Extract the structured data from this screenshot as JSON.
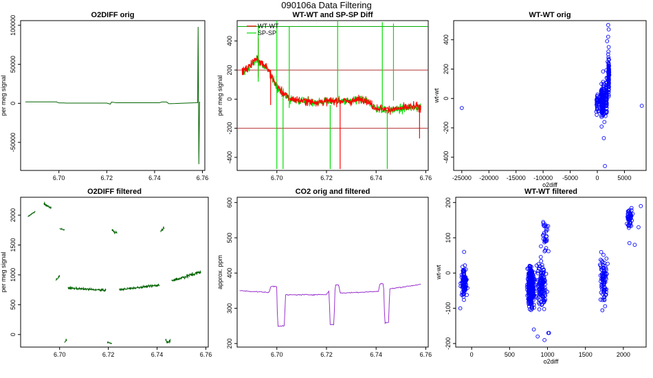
{
  "suptitle": "090106a   Data Filtering",
  "colors": {
    "o2diff": "#006400",
    "wtwt": "#ff0000",
    "spsp": "#00dd00",
    "co2": "#9932cc",
    "scatter": "#0000ff",
    "refline_red": "#b03030",
    "refline_green": "#00aa00"
  },
  "chart_data": [
    {
      "id": "p1",
      "type": "line",
      "title": "O2DIFF orig",
      "xlabel": "",
      "ylabel": "per meg signal",
      "xlim": [
        6.684,
        6.761
      ],
      "ylim": [
        -86000,
        106000
      ],
      "xticks": [
        6.7,
        6.72,
        6.74,
        6.76
      ],
      "xtick_labels": [
        "6.70",
        "6.72",
        "6.74",
        "6.76"
      ],
      "yticks": [
        -50000,
        0,
        50000,
        100000
      ],
      "ytick_labels": [
        "-50000",
        "0",
        "50000",
        "100000"
      ],
      "series": [
        {
          "name": "O2DIFF orig",
          "color_key": "o2diff",
          "x": [
            6.686,
            6.699,
            6.7,
            6.702,
            6.703,
            6.72,
            6.7215,
            6.722,
            6.724,
            6.742,
            6.743,
            6.745,
            6.746,
            6.757,
            6.758,
            6.7582,
            6.7585,
            6.7588,
            6.759
          ],
          "y": [
            1800,
            1800,
            500,
            500,
            300,
            300,
            -1000,
            1600,
            800,
            800,
            1700,
            1700,
            -500,
            800,
            1000,
            98000,
            -78000,
            1500,
            1500
          ]
        }
      ]
    },
    {
      "id": "p2",
      "type": "line",
      "title": "WT-WT and SP-SP Diff",
      "xlabel": "",
      "ylabel": "per meg signal",
      "xlim": [
        6.684,
        6.761
      ],
      "ylim": [
        -490,
        540
      ],
      "xticks": [
        6.7,
        6.72,
        6.74,
        6.76
      ],
      "xtick_labels": [
        "6.70",
        "6.72",
        "6.74",
        "6.76"
      ],
      "yticks": [
        -400,
        -200,
        0,
        200,
        400
      ],
      "ytick_labels": [
        "-400",
        "-200",
        "0",
        "200",
        "400"
      ],
      "hlines": [
        {
          "y": 200,
          "color_key": "refline_red"
        },
        {
          "y": -200,
          "color_key": "refline_red"
        },
        {
          "y": 500,
          "color_key": "refline_green"
        }
      ],
      "legend": {
        "position": "top-left",
        "entries": [
          {
            "label": "WT-WT",
            "color_key": "wtwt"
          },
          {
            "label": "SP-SP",
            "color_key": "spsp"
          }
        ]
      },
      "spikes_spsp": [
        {
          "x": 6.6925,
          "y0": 120,
          "y1": 510
        },
        {
          "x": 6.7,
          "y0": -480,
          "y1": 540
        },
        {
          "x": 6.7025,
          "y0": -480,
          "y1": 10
        },
        {
          "x": 6.705,
          "y0": -60,
          "y1": 500
        },
        {
          "x": 6.7215,
          "y0": -480,
          "y1": -40
        },
        {
          "x": 6.7245,
          "y0": -20,
          "y1": 540
        },
        {
          "x": 6.7425,
          "y0": -60,
          "y1": 530
        },
        {
          "x": 6.7445,
          "y0": -480,
          "y1": -80
        },
        {
          "x": 6.747,
          "y0": -10,
          "y1": 520
        }
      ],
      "series": [
        {
          "name": "WT-WT",
          "color_key": "wtwt",
          "x": [
            6.686,
            6.688,
            6.69,
            6.692,
            6.694,
            6.696,
            6.698,
            6.7,
            6.702,
            6.704,
            6.706,
            6.71,
            6.715,
            6.72,
            6.725,
            6.73,
            6.735,
            6.74,
            6.745,
            6.75,
            6.755,
            6.758
          ],
          "y": [
            190,
            210,
            250,
            280,
            250,
            220,
            150,
            90,
            50,
            20,
            0,
            -10,
            -20,
            -15,
            -10,
            -15,
            5,
            -60,
            -70,
            -65,
            -50,
            -55
          ],
          "noise": 40,
          "spikes": [
            {
              "x": 6.6925,
              "y0": 150,
              "y1": 420
            },
            {
              "x": 6.6975,
              "y0": -40,
              "y1": 200
            },
            {
              "x": 6.7255,
              "y0": -480,
              "y1": -10
            },
            {
              "x": 6.7575,
              "y0": -270,
              "y1": -50
            }
          ]
        },
        {
          "name": "SP-SP",
          "color_key": "spsp",
          "x": [
            6.686,
            6.688,
            6.69,
            6.692,
            6.694,
            6.696,
            6.698,
            6.7,
            6.702,
            6.704,
            6.706,
            6.71,
            6.715,
            6.72,
            6.725,
            6.73,
            6.735,
            6.74,
            6.745,
            6.75,
            6.755,
            6.758
          ],
          "y": [
            185,
            200,
            240,
            270,
            240,
            215,
            145,
            85,
            45,
            15,
            -5,
            -12,
            -22,
            -18,
            -12,
            -18,
            0,
            -65,
            -75,
            -70,
            -55,
            -60
          ],
          "noise": 40
        }
      ]
    },
    {
      "id": "p3",
      "type": "scatter",
      "title": "WT-WT orig",
      "xlabel": "o2diff",
      "ylabel": "wt-wt",
      "xlim": [
        -26500,
        9000
      ],
      "ylim": [
        -490,
        530
      ],
      "xticks": [
        -25000,
        -20000,
        -15000,
        -10000,
        -5000,
        0,
        5000
      ],
      "xtick_labels": [
        "-25000",
        "-20000",
        "-15000",
        "-10000",
        "-5000",
        "0",
        "5000"
      ],
      "yticks": [
        -400,
        -200,
        0,
        200,
        400
      ],
      "ytick_labels": [
        "-400",
        "-200",
        "0",
        "200",
        "400"
      ],
      "points_x": [
        -25000,
        8200,
        2000,
        2100,
        1800,
        1200,
        1400,
        2000,
        -200,
        2100,
        2000,
        1900,
        2050,
        1300,
        1500
      ],
      "points_y": [
        -65,
        -50,
        500,
        470,
        390,
        -270,
        -460,
        300,
        -90,
        350,
        420,
        250,
        280,
        -160,
        -120
      ],
      "clusters": [
        {
          "cx": 0,
          "sx": 150,
          "cy": -30,
          "sy": 55,
          "n": 30
        },
        {
          "cx": 800,
          "sx": 80,
          "cy": -20,
          "sy": 80,
          "n": 90
        },
        {
          "cx": 1100,
          "sx": 100,
          "cy": -10,
          "sy": 90,
          "n": 60
        },
        {
          "cx": 1700,
          "sx": 60,
          "cy": 30,
          "sy": 90,
          "n": 60
        },
        {
          "cx": 2100,
          "sx": 70,
          "cy": 150,
          "sy": 90,
          "n": 80
        }
      ]
    },
    {
      "id": "p4",
      "type": "line",
      "title": "O2DIFF filtered",
      "xlabel": "",
      "ylabel": "per meg signal",
      "xlim": [
        6.684,
        6.761
      ],
      "ylim": [
        -210,
        2300
      ],
      "xticks": [
        6.7,
        6.72,
        6.74,
        6.76
      ],
      "xtick_labels": [
        "6.70",
        "6.72",
        "6.74",
        "6.76"
      ],
      "yticks": [
        0,
        500,
        1000,
        1500,
        2000
      ],
      "ytick_labels": [
        "0",
        "500",
        "1000",
        "1500",
        "2000"
      ],
      "segments": [
        {
          "x": [
            6.687,
            6.69
          ],
          "y": [
            1980,
            2060
          ],
          "noise": 15
        },
        {
          "x": [
            6.6935,
            6.6965
          ],
          "y": [
            2200,
            2120
          ],
          "noise": 40
        },
        {
          "x": [
            6.6985,
            6.7
          ],
          "y": [
            900,
            980
          ],
          "noise": 40
        },
        {
          "x": [
            6.7,
            6.702
          ],
          "y": [
            1780,
            1750
          ],
          "noise": 15
        },
        {
          "x": [
            6.702,
            6.703
          ],
          "y": [
            -120,
            -100
          ],
          "noise": 40
        },
        {
          "x": [
            6.7035,
            6.719
          ],
          "y": [
            780,
            740
          ],
          "noise": 25
        },
        {
          "x": [
            6.7195,
            6.7215
          ],
          "y": [
            -130,
            -150
          ],
          "noise": 15
        },
        {
          "x": [
            6.7215,
            6.7235
          ],
          "y": [
            1750,
            1700
          ],
          "noise": 40
        },
        {
          "x": [
            6.7245,
            6.741
          ],
          "y": [
            750,
            830
          ],
          "noise": 25
        },
        {
          "x": [
            6.7415,
            6.743
          ],
          "y": [
            1730,
            1800
          ],
          "noise": 40
        },
        {
          "x": [
            6.7435,
            6.7455
          ],
          "y": [
            -100,
            -120
          ],
          "noise": 50
        },
        {
          "x": [
            6.746,
            6.758
          ],
          "y": [
            900,
            1050
          ],
          "noise": 45
        }
      ]
    },
    {
      "id": "p5",
      "type": "line",
      "title": "CO2 orig and filtered",
      "xlabel": "",
      "ylabel": "approx. ppm",
      "xlim": [
        6.684,
        6.761
      ],
      "ylim": [
        190,
        615
      ],
      "xticks": [
        6.7,
        6.72,
        6.74,
        6.76
      ],
      "xtick_labels": [
        "6.70",
        "6.72",
        "6.74",
        "6.76"
      ],
      "yticks": [
        200,
        300,
        400,
        500,
        600
      ],
      "ytick_labels": [
        "200",
        "300",
        "400",
        "500",
        "600"
      ],
      "series": [
        {
          "name": "CO2",
          "color_key": "co2",
          "x": [
            6.685,
            6.697,
            6.6975,
            6.7,
            6.7003,
            6.703,
            6.7035,
            6.72,
            6.721,
            6.7215,
            6.723,
            6.7235,
            6.725,
            6.7255,
            6.741,
            6.7415,
            6.743,
            6.7435,
            6.745,
            6.7455,
            6.758
          ],
          "y": [
            350,
            345,
            362,
            362,
            250,
            250,
            338,
            339,
            350,
            254,
            254,
            366,
            366,
            343,
            348,
            370,
            370,
            258,
            260,
            355,
            368
          ],
          "noise": 2
        }
      ]
    },
    {
      "id": "p6",
      "type": "scatter",
      "title": "WT-WT filtered",
      "xlabel": "o2diff",
      "ylabel": "wt-wt",
      "xlim": [
        -210,
        2300
      ],
      "ylim": [
        -210,
        215
      ],
      "xticks": [
        0,
        500,
        1000,
        1500,
        2000
      ],
      "xtick_labels": [
        "0",
        "500",
        "1000",
        "1500",
        "2000"
      ],
      "yticks": [
        -200,
        -100,
        0,
        100,
        200
      ],
      "ytick_labels": [
        "-200",
        "-100",
        "0",
        "100",
        "200"
      ],
      "points_x": [
        -150,
        -100,
        2200,
        2150,
        2230,
        2080,
        960,
        870,
        820,
        1020,
        1010
      ],
      "points_y": [
        -100,
        60,
        130,
        80,
        190,
        85,
        -190,
        -180,
        -160,
        -170,
        -170
      ],
      "clusters": [
        {
          "cx": -100,
          "sx": 25,
          "cy": -20,
          "sy": 28,
          "n": 90
        },
        {
          "cx": 780,
          "sx": 30,
          "cy": -40,
          "sy": 38,
          "n": 320
        },
        {
          "cx": 920,
          "sx": 45,
          "cy": -30,
          "sy": 40,
          "n": 120
        },
        {
          "cx": 960,
          "sx": 30,
          "cy": 110,
          "sy": 35,
          "n": 30
        },
        {
          "cx": 1740,
          "sx": 28,
          "cy": -20,
          "sy": 45,
          "n": 90
        },
        {
          "cx": 2080,
          "sx": 25,
          "cy": 160,
          "sy": 20,
          "n": 50
        }
      ]
    }
  ]
}
